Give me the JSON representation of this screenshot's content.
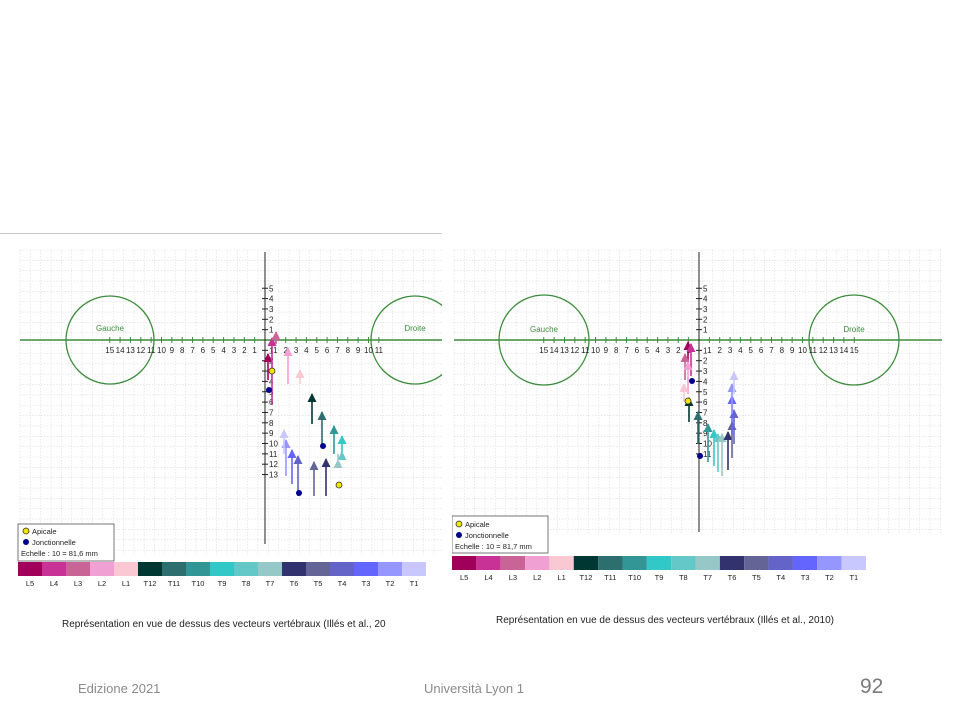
{
  "slide": {
    "footer_left": "Edizione 2021",
    "footer_center": "Università Lyon 1",
    "page_number": "92"
  },
  "figures": [
    {
      "id": "left",
      "circle_left_label": "Gauche",
      "circle_right_label": "Droite",
      "x_ticks_left": [
        "15",
        "14",
        "13",
        "12",
        "11",
        "10",
        "9",
        "8",
        "7",
        "6",
        "5",
        "4",
        "3",
        "2",
        "1"
      ],
      "x_ticks_right": [
        "1",
        "2",
        "3",
        "4",
        "5",
        "6",
        "7",
        "8",
        "9",
        "10",
        "11"
      ],
      "y_ticks_up": [
        "5",
        "4",
        "3",
        "2",
        "1"
      ],
      "y_ticks_down": [
        "1",
        "2",
        "3",
        "4",
        "5",
        "6",
        "7",
        "8",
        "9",
        "10",
        "11",
        "12",
        "13"
      ],
      "legend": {
        "apicale": "Apicale",
        "jonctionnelle": "Jonctionnelle",
        "scale": "Echelle : 10 = 81,6 mm"
      },
      "color_bar_labels": [
        "L5",
        "L4",
        "L3",
        "L2",
        "L1",
        "T12",
        "T11",
        "T10",
        "T9",
        "T8",
        "T7",
        "T6",
        "T5",
        "T4",
        "T3",
        "T2",
        "T1"
      ],
      "caption": "Représentation en vue de dessus des vecteurs vertébraux (Illés et al., 20"
    },
    {
      "id": "right",
      "circle_left_label": "Gauche",
      "circle_right_label": "Droite",
      "x_ticks_left": [
        "15",
        "14",
        "13",
        "12",
        "11",
        "10",
        "9",
        "8",
        "7",
        "6",
        "5",
        "4",
        "3",
        "2",
        "1"
      ],
      "x_ticks_right": [
        "1",
        "2",
        "3",
        "4",
        "5",
        "6",
        "7",
        "8",
        "9",
        "10",
        "11",
        "12",
        "13",
        "14",
        "15"
      ],
      "y_ticks_up": [
        "5",
        "4",
        "3",
        "2",
        "1"
      ],
      "y_ticks_down": [
        "1",
        "2",
        "3",
        "4",
        "5",
        "6",
        "7",
        "8",
        "9",
        "10",
        "11"
      ],
      "legend": {
        "apicale": "Apicale",
        "jonctionnelle": "Jonctionnelle",
        "scale": "Echelle : 10 = 81,7 mm"
      },
      "color_bar_labels": [
        "L5",
        "L4",
        "L3",
        "L2",
        "L1",
        "T12",
        "T11",
        "T10",
        "T9",
        "T8",
        "T7",
        "T6",
        "T5",
        "T4",
        "T3",
        "T2",
        "T1"
      ],
      "caption": "Représentation en vue de dessus des vecteurs vertébraux (Illés et al., 2010)"
    }
  ],
  "colors": {
    "segments": [
      "#a0005a",
      "#c83296",
      "#c86496",
      "#f0a0d2",
      "#fac8d2",
      "#003732",
      "#2d6e6e",
      "#329696",
      "#32c8c8",
      "#64c8c8",
      "#96c8c8",
      "#32326e",
      "#646496",
      "#6464c8",
      "#6464ff",
      "#9696ff",
      "#c8c8ff"
    ],
    "axis": "#3c8c3c",
    "grid": "#dcdcdc",
    "apicale": "#f0e600",
    "jonctionnelle": "#00008c"
  }
}
